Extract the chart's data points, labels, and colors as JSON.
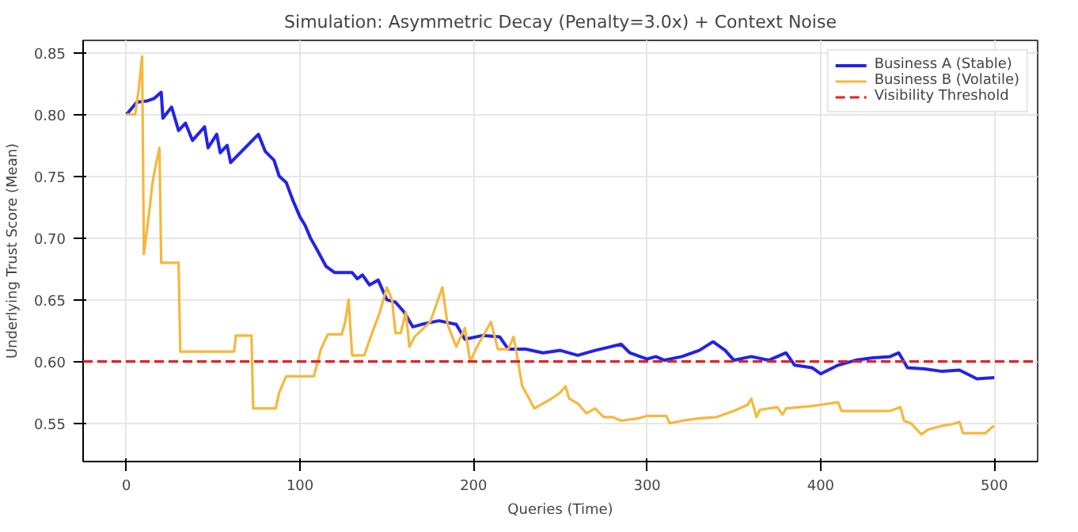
{
  "chart_data": {
    "type": "line",
    "title": "Simulation: Asymmetric Decay (Penalty=3.0x) + Context Noise",
    "xlabel": "Queries (Time)",
    "ylabel": "Underlying Trust Score (Mean)",
    "xlim": [
      -25,
      525
    ],
    "ylim": [
      0.519,
      0.86
    ],
    "xticks": [
      0,
      100,
      200,
      300,
      400,
      500
    ],
    "yticks": [
      0.55,
      {
        "value": 0.6,
        "label": "0.60"
      },
      0.65,
      {
        "value": 0.7,
        "label": "0.70"
      },
      0.75,
      {
        "value": 0.8,
        "label": "0.80"
      },
      0.85
    ],
    "grid": true,
    "legend": "top right",
    "line_style": "solid",
    "marker": "none",
    "series": [
      {
        "name": "Business A (Stable)",
        "color": "#2323e6",
        "x": [
          0,
          3,
          6,
          12,
          16,
          20,
          21,
          26,
          30,
          34,
          38,
          45,
          47,
          52,
          54,
          58,
          60,
          76,
          80,
          85,
          88,
          92,
          96,
          100,
          103,
          106,
          110,
          115,
          120,
          125,
          130,
          133,
          136,
          140,
          145,
          150,
          155,
          160,
          165,
          170,
          180,
          190,
          195,
          205,
          215,
          220,
          230,
          240,
          250,
          260,
          270,
          285,
          290,
          300,
          305,
          310,
          320,
          330,
          338,
          345,
          350,
          360,
          370,
          380,
          385,
          395,
          400,
          410,
          420,
          430,
          440,
          445,
          450,
          460,
          470,
          480,
          490,
          500
        ],
        "values": [
          0.8,
          0.805,
          0.81,
          0.811,
          0.813,
          0.818,
          0.797,
          0.806,
          0.787,
          0.793,
          0.779,
          0.79,
          0.773,
          0.784,
          0.769,
          0.775,
          0.761,
          0.784,
          0.77,
          0.763,
          0.75,
          0.745,
          0.73,
          0.717,
          0.71,
          0.7,
          0.69,
          0.677,
          0.672,
          0.672,
          0.672,
          0.667,
          0.67,
          0.662,
          0.666,
          0.65,
          0.648,
          0.64,
          0.628,
          0.63,
          0.633,
          0.63,
          0.618,
          0.621,
          0.62,
          0.61,
          0.61,
          0.607,
          0.609,
          0.605,
          0.609,
          0.614,
          0.607,
          0.602,
          0.604,
          0.601,
          0.604,
          0.609,
          0.616,
          0.609,
          0.601,
          0.604,
          0.601,
          0.607,
          0.597,
          0.595,
          0.59,
          0.597,
          0.601,
          0.603,
          0.604,
          0.607,
          0.595,
          0.594,
          0.592,
          0.593,
          0.586,
          0.587
        ]
      },
      {
        "name": "Business B (Volatile)",
        "color": "#f5b83d",
        "x": [
          0,
          5,
          7,
          9,
          10,
          13,
          15,
          17,
          19,
          20,
          30,
          31,
          62,
          63,
          72,
          73,
          86,
          88,
          92,
          108,
          112,
          116,
          124,
          126,
          128,
          130,
          137,
          142,
          146,
          150,
          153,
          155,
          158,
          161,
          163,
          166,
          175,
          182,
          185,
          190,
          195,
          198,
          202,
          208,
          210,
          214,
          220,
          223,
          225,
          228,
          232,
          235,
          240,
          245,
          250,
          253,
          255,
          260,
          265,
          270,
          275,
          280,
          285,
          295,
          300,
          311,
          313,
          320,
          330,
          340,
          350,
          358,
          360,
          363,
          365,
          375,
          378,
          380,
          395,
          400,
          410,
          412,
          440,
          446,
          448,
          452,
          458,
          462,
          470,
          475,
          480,
          482,
          495,
          498,
          500
        ],
        "values": [
          0.8,
          0.8,
          0.82,
          0.847,
          0.687,
          0.72,
          0.745,
          0.76,
          0.773,
          0.68,
          0.68,
          0.608,
          0.608,
          0.621,
          0.621,
          0.562,
          0.562,
          0.575,
          0.588,
          0.588,
          0.61,
          0.622,
          0.622,
          0.632,
          0.65,
          0.605,
          0.605,
          0.625,
          0.64,
          0.66,
          0.65,
          0.623,
          0.623,
          0.64,
          0.612,
          0.62,
          0.632,
          0.66,
          0.63,
          0.612,
          0.627,
          0.6,
          0.612,
          0.627,
          0.632,
          0.61,
          0.61,
          0.62,
          0.605,
          0.58,
          0.57,
          0.562,
          0.566,
          0.57,
          0.575,
          0.58,
          0.57,
          0.566,
          0.558,
          0.562,
          0.555,
          0.555,
          0.552,
          0.554,
          0.556,
          0.556,
          0.55,
          0.552,
          0.554,
          0.555,
          0.56,
          0.565,
          0.57,
          0.555,
          0.561,
          0.563,
          0.557,
          0.562,
          0.564,
          0.565,
          0.567,
          0.56,
          0.56,
          0.563,
          0.552,
          0.55,
          0.541,
          0.545,
          0.548,
          0.549,
          0.551,
          0.542,
          0.542,
          0.546,
          0.548
        ]
      }
    ],
    "ref_lines": [
      {
        "axis": "y",
        "value": 0.6,
        "label": "Visibility Threshold",
        "color": "#d62728",
        "line_style": "dashed"
      }
    ]
  }
}
